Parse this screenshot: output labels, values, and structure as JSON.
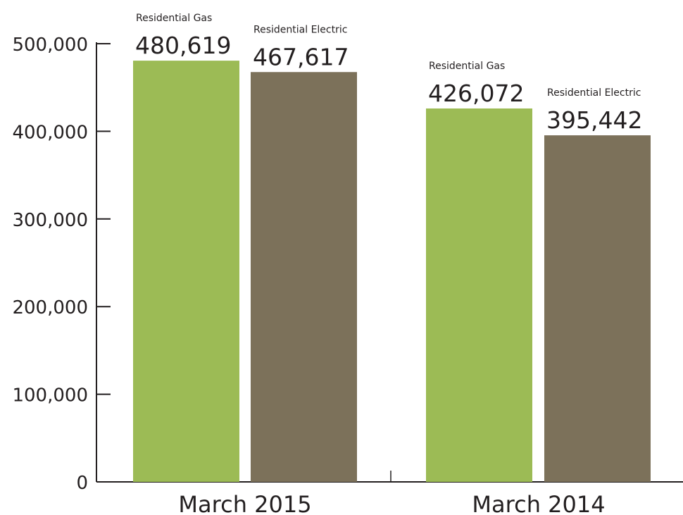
{
  "chart_data": {
    "type": "bar",
    "categories": [
      "March 2015",
      "March 2014"
    ],
    "series": [
      {
        "name": "Residential Gas",
        "color": "#9cbb55",
        "values": [
          480619,
          426072
        ]
      },
      {
        "name": "Residential Electric",
        "color": "#7c715a",
        "values": [
          467617,
          395442
        ]
      }
    ],
    "value_labels": [
      [
        "480,619",
        "426,072"
      ],
      [
        "467,617",
        "395,442"
      ]
    ],
    "yticks": [
      {
        "value": 0,
        "label": "0"
      },
      {
        "value": 100000,
        "label": "100,000"
      },
      {
        "value": 200000,
        "label": "200,000"
      },
      {
        "value": 300000,
        "label": "300,000"
      },
      {
        "value": 400000,
        "label": "400,000"
      },
      {
        "value": 500000,
        "label": "500,000"
      }
    ],
    "ylim": [
      0,
      500000
    ],
    "title": "",
    "xlabel": "",
    "ylabel": "",
    "grid": false,
    "legend": "none"
  }
}
